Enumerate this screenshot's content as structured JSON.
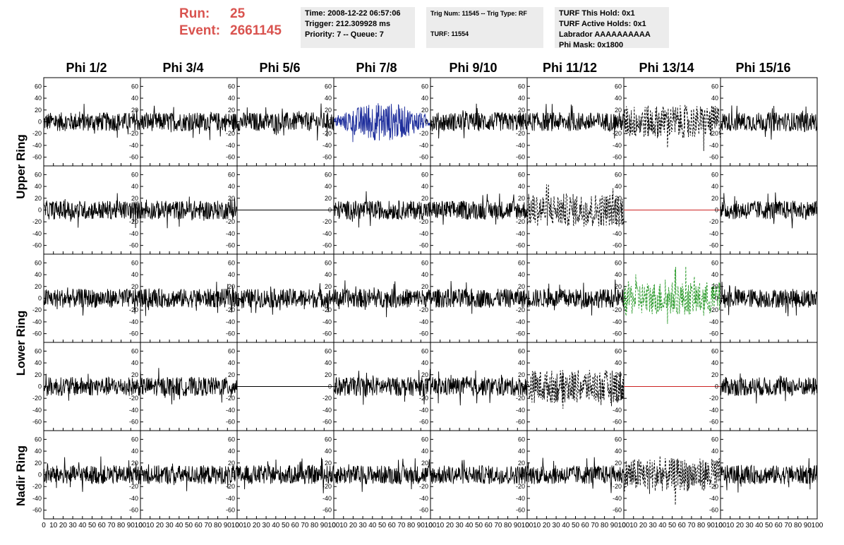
{
  "header": {
    "run_label": "Run:",
    "run_value": "25",
    "event_label": "Event:",
    "event_value": "2661145"
  },
  "info_box_1": {
    "time": "Time: 2008-12-22 06:57:06",
    "trigger": "Trigger: 212.309928 ms",
    "priority": "Priority: 7 -- Queue: 7"
  },
  "info_box_2": {
    "trig": "Trig Num: 11545 -- Trig Type: RF",
    "turf": "TURF: 11554"
  },
  "info_box_3": {
    "hold": "TURF This Hold: 0x1",
    "active": "TURF Active Holds: 0x1",
    "labrador": "Labrador AAAAAAAAAA",
    "phimask": "Phi Mask: 0x1800"
  },
  "phi_headers": [
    "Phi 1/2",
    "Phi 3/4",
    "Phi 5/6",
    "Phi 7/8",
    "Phi 9/10",
    "Phi 11/12",
    "Phi 13/14",
    "Phi 15/16"
  ],
  "ring_labels": [
    "Upper Ring",
    "Lower Ring",
    "Nadir Ring"
  ],
  "colors": {
    "normal": "#000000",
    "blue": "#1f2f9c",
    "green": "#2a9a2a",
    "red": "#cc2222"
  },
  "chart_data": {
    "type": "line",
    "y_ticks": [
      60,
      40,
      20,
      0,
      -20,
      -40,
      -60
    ],
    "x_ticks": [
      0,
      10,
      20,
      30,
      40,
      50,
      60,
      70,
      80,
      90,
      100
    ],
    "ylim": [
      -70,
      70
    ],
    "xlim": [
      0,
      100
    ],
    "panels_style": [
      [
        "normal",
        "normal",
        "normal",
        "blue",
        "normal",
        "normal",
        "dashed",
        "normal"
      ],
      [
        "normal",
        "normal",
        "flat-black",
        "normal",
        "normal",
        "dashed",
        "flat-red",
        "normal"
      ],
      [
        "normal",
        "normal",
        "normal",
        "normal",
        "normal",
        "normal",
        "green-dashed",
        "normal"
      ],
      [
        "normal",
        "normal",
        "flat-black",
        "normal",
        "normal",
        "dashed",
        "flat-red",
        "normal"
      ],
      [
        "normal",
        "normal",
        "normal",
        "normal",
        "normal",
        "normal",
        "dashed",
        "normal"
      ]
    ]
  }
}
